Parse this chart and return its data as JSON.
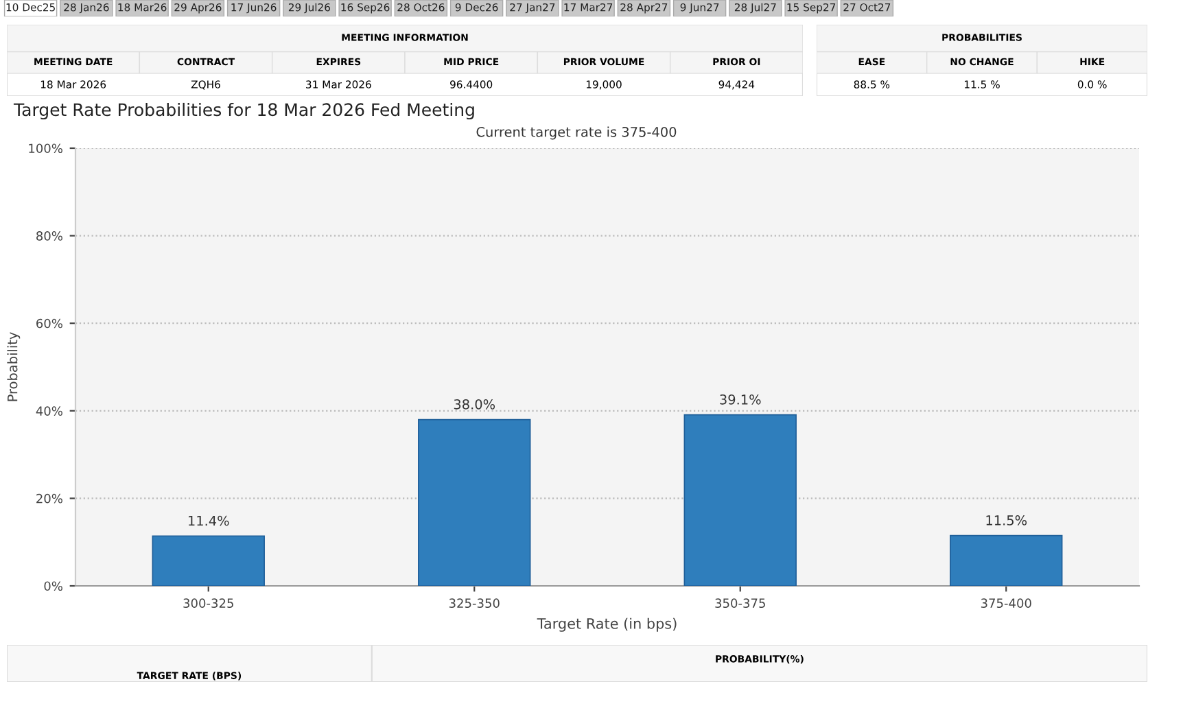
{
  "chart_data": [
    {
      "type": "other",
      "annotations": [
        "10 Dec25",
        "28 Jan26",
        "18 Mar26",
        "29 Apr26",
        "17 Jun26",
        "29 Jul26",
        "16 Sep26",
        "28 Oct26",
        "9 Dec26",
        "27 Jan27",
        "17 Mar27",
        "28 Apr27",
        "9 Jun27",
        "28 Jul27",
        "15 Sep27",
        "27 Oct27"
      ]
    },
    {
      "type": "other",
      "title": "MEETING INFORMATION",
      "annotations": [
        "MEETING DATE",
        "CONTRACT",
        "EXPIRES",
        "MID PRICE",
        "PRIOR VOLUME",
        "PRIOR OI",
        "18 Mar 2026",
        "ZQH6",
        "31 Mar 2026",
        "96.4400",
        "19,000",
        "94,424"
      ]
    },
    {
      "type": "other",
      "title": "PROBABILITIES",
      "annotations": [
        "EASE",
        "NO CHANGE",
        "HIKE",
        "88.5 %",
        "11.5 %",
        "0.0 %"
      ]
    },
    {
      "type": "bar",
      "title": "Target Rate Probabilities for 18 Mar 2026 Fed Meeting",
      "subtitle": "Current target rate is 375-400",
      "xlabel": "Target Rate (in bps)",
      "ylabel": "Probability",
      "categories": [
        "300-325",
        "325-350",
        "350-375",
        "375-400"
      ],
      "values": [
        11.4,
        38.0,
        39.1,
        11.5
      ],
      "value_labels": [
        "11.4%",
        "38.0%",
        "39.1%",
        "11.5%"
      ],
      "color": "#2f7ebc",
      "ylim": [
        0,
        100
      ],
      "yticks": [
        {
          "value": 0,
          "label": "0%"
        },
        {
          "value": 20,
          "label": "20%"
        },
        {
          "value": 40,
          "label": "40%"
        },
        {
          "value": 60,
          "label": "60%"
        },
        {
          "value": 80,
          "label": "80%"
        },
        {
          "value": 100,
          "label": "100%"
        }
      ],
      "grid": "y",
      "legend": false
    },
    {
      "type": "other",
      "title": "PROBABILITY(%)",
      "annotations": [
        "TARGET RATE (BPS)"
      ]
    }
  ]
}
